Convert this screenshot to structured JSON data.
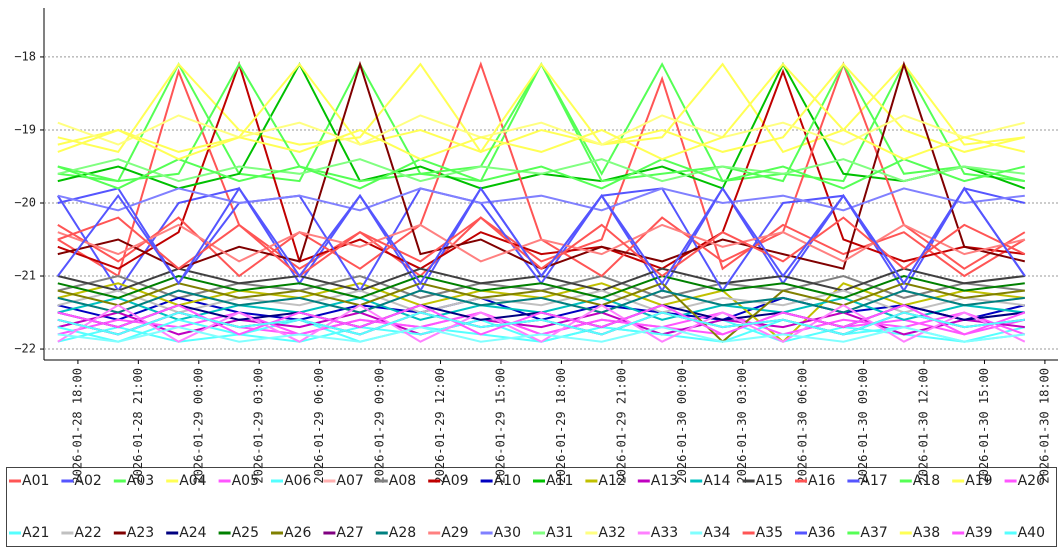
{
  "chart_data": {
    "type": "line",
    "x": [
      "2026-01-28 17:00",
      "2026-01-28 20:00",
      "2026-01-28 23:00",
      "2026-01-29 02:00",
      "2026-01-29 05:00",
      "2026-01-29 08:00",
      "2026-01-29 11:00",
      "2026-01-29 14:00",
      "2026-01-29 17:00",
      "2026-01-29 20:00",
      "2026-01-29 23:00",
      "2026-01-30 02:00",
      "2026-01-30 05:00",
      "2026-01-30 08:00",
      "2026-01-30 11:00",
      "2026-01-30 14:00",
      "2026-01-30 17:00"
    ],
    "xlim": [
      "2026-01-28 16:19",
      "2026-01-30 18:39"
    ],
    "xticks": [
      "2026-01-28 18:00",
      "2026-01-28 21:00",
      "2026-01-29 00:00",
      "2026-01-29 03:00",
      "2026-01-29 06:00",
      "2026-01-29 09:00",
      "2026-01-29 12:00",
      "2026-01-29 15:00",
      "2026-01-29 18:00",
      "2026-01-29 21:00",
      "2026-01-30 00:00",
      "2026-01-30 03:00",
      "2026-01-30 06:00",
      "2026-01-30 09:00",
      "2026-01-30 12:00",
      "2026-01-30 15:00",
      "2026-01-30 18:00"
    ],
    "ylim": [
      -22.15,
      -17.33
    ],
    "yticks": [
      {
        "value": -22,
        "label": "−22"
      },
      {
        "value": -21,
        "label": "−21"
      },
      {
        "value": -20,
        "label": "−20"
      },
      {
        "value": -19,
        "label": "−19"
      },
      {
        "value": -18,
        "label": "−18"
      }
    ],
    "grid": true,
    "legend": "bottom",
    "series": [
      {
        "name": "A01",
        "color": "#ff5555",
        "values": [
          -20.5,
          -21.0,
          -18.2,
          -20.3,
          -20.9,
          -20.4,
          -21.0,
          -20.2,
          -20.8,
          -20.5,
          -18.3,
          -20.9,
          -20.3,
          -20.7,
          -20.4,
          -21.0,
          -20.5
        ]
      },
      {
        "name": "A02",
        "color": "#5555ff",
        "values": [
          -19.9,
          -21.2,
          -20.0,
          -19.8,
          -21.1,
          -19.9,
          -21.2,
          -19.8,
          -21.0,
          -19.9,
          -21.2,
          -19.8,
          -21.1,
          -19.9,
          -21.2,
          -19.8,
          -21.0
        ]
      },
      {
        "name": "A03",
        "color": "#55ff55",
        "values": [
          -19.6,
          -19.7,
          -18.1,
          -19.6,
          -19.7,
          -18.1,
          -19.6,
          -19.7,
          -18.1,
          -19.6,
          -18.1,
          -19.7,
          -19.6,
          -19.7,
          -18.1,
          -19.6,
          -19.7
        ]
      },
      {
        "name": "A04",
        "color": "#ffff55",
        "values": [
          -19.1,
          -19.3,
          -18.1,
          -19.0,
          -19.2,
          -19.1,
          -18.1,
          -19.3,
          -19.0,
          -19.2,
          -19.1,
          -18.1,
          -19.3,
          -19.0,
          -18.1,
          -19.2,
          -19.1
        ]
      },
      {
        "name": "A05",
        "color": "#ff55ff",
        "values": [
          -21.6,
          -21.8,
          -21.5,
          -21.7,
          -21.8,
          -21.6,
          -21.7,
          -21.5,
          -21.8,
          -21.6,
          -21.7,
          -21.8,
          -21.5,
          -21.7,
          -21.6,
          -21.8,
          -21.6
        ]
      },
      {
        "name": "A06",
        "color": "#55ffff",
        "values": [
          -21.9,
          -21.7,
          -21.9,
          -21.8,
          -21.6,
          -21.9,
          -21.7,
          -21.8,
          -21.9,
          -21.7,
          -21.8,
          -21.6,
          -21.9,
          -21.7,
          -21.8,
          -21.9,
          -21.7
        ]
      },
      {
        "name": "A07",
        "color": "#ffafaf",
        "values": [
          -21.3,
          -21.5,
          -21.2,
          -21.4,
          -21.3,
          -21.5,
          -21.2,
          -21.4,
          -21.3,
          -21.5,
          -21.2,
          -21.4,
          -21.3,
          -21.5,
          -21.2,
          -21.4,
          -21.3
        ]
      },
      {
        "name": "A08",
        "color": "#808080",
        "values": [
          -21.2,
          -21.0,
          -21.3,
          -21.1,
          -21.2,
          -21.0,
          -21.3,
          -21.1,
          -21.2,
          -21.0,
          -21.3,
          -21.1,
          -21.2,
          -21.0,
          -21.3,
          -21.1,
          -21.2
        ]
      },
      {
        "name": "A09",
        "color": "#c00000",
        "values": [
          -20.6,
          -20.9,
          -20.4,
          -18.1,
          -20.8,
          -20.5,
          -20.9,
          -20.4,
          -20.7,
          -20.6,
          -20.9,
          -20.4,
          -18.2,
          -20.5,
          -20.8,
          -20.6,
          -20.7
        ]
      },
      {
        "name": "A10",
        "color": "#0000c0",
        "values": [
          -21.4,
          -21.6,
          -21.3,
          -21.5,
          -21.6,
          -21.4,
          -21.5,
          -21.3,
          -21.6,
          -21.4,
          -21.5,
          -21.6,
          -21.3,
          -21.5,
          -21.4,
          -21.6,
          -21.4
        ]
      },
      {
        "name": "A11",
        "color": "#00c000",
        "values": [
          -19.7,
          -19.5,
          -19.8,
          -19.6,
          -18.1,
          -19.7,
          -19.5,
          -19.8,
          -19.6,
          -19.7,
          -19.5,
          -19.8,
          -18.1,
          -19.6,
          -19.7,
          -19.5,
          -19.8
        ]
      },
      {
        "name": "A12",
        "color": "#c0c000",
        "values": [
          -21.3,
          -21.1,
          -21.4,
          -21.2,
          -21.3,
          -21.1,
          -21.4,
          -21.2,
          -21.3,
          -21.1,
          -21.4,
          -21.2,
          -21.9,
          -21.1,
          -21.4,
          -21.2,
          -21.3
        ]
      },
      {
        "name": "A13",
        "color": "#c000c0",
        "values": [
          -21.7,
          -21.5,
          -21.8,
          -21.6,
          -21.7,
          -21.5,
          -21.8,
          -21.6,
          -21.7,
          -21.5,
          -21.8,
          -21.6,
          -21.7,
          -21.5,
          -21.8,
          -21.6,
          -21.7
        ]
      },
      {
        "name": "A14",
        "color": "#00c0c0",
        "values": [
          -21.5,
          -21.3,
          -21.6,
          -21.4,
          -21.5,
          -21.3,
          -21.6,
          -21.4,
          -21.5,
          -21.3,
          -21.6,
          -21.4,
          -21.5,
          -21.3,
          -21.6,
          -21.4,
          -21.5
        ]
      },
      {
        "name": "A15",
        "color": "#404040",
        "values": [
          -21.0,
          -21.2,
          -20.9,
          -21.1,
          -21.0,
          -21.2,
          -20.9,
          -21.1,
          -21.0,
          -21.2,
          -20.9,
          -21.1,
          -21.0,
          -21.2,
          -20.9,
          -21.1,
          -21.0
        ]
      },
      {
        "name": "A16",
        "color": "#ff5555",
        "values": [
          -20.3,
          -20.8,
          -20.2,
          -21.0,
          -20.4,
          -20.9,
          -20.3,
          -18.1,
          -20.5,
          -21.0,
          -20.2,
          -20.8,
          -20.4,
          -18.1,
          -20.3,
          -20.9,
          -20.4
        ]
      },
      {
        "name": "A17",
        "color": "#5555ff",
        "values": [
          -20.0,
          -19.8,
          -21.1,
          -20.0,
          -19.9,
          -21.2,
          -19.8,
          -20.0,
          -21.1,
          -19.9,
          -19.8,
          -21.2,
          -20.0,
          -19.9,
          -21.1,
          -19.8,
          -20.0
        ]
      },
      {
        "name": "A18",
        "color": "#55ff55",
        "values": [
          -19.5,
          -19.7,
          -19.6,
          -18.1,
          -19.5,
          -19.7,
          -19.6,
          -19.5,
          -18.1,
          -19.7,
          -19.6,
          -19.5,
          -19.7,
          -18.1,
          -19.6,
          -19.5,
          -19.7
        ]
      },
      {
        "name": "A19",
        "color": "#ffff55",
        "values": [
          -19.2,
          -19.0,
          -19.3,
          -19.1,
          -18.1,
          -19.2,
          -19.0,
          -19.3,
          -18.1,
          -19.2,
          -19.0,
          -19.3,
          -19.1,
          -18.1,
          -19.0,
          -19.3,
          -19.1
        ]
      },
      {
        "name": "A20",
        "color": "#ff55ff",
        "values": [
          -21.8,
          -21.6,
          -21.7,
          -21.5,
          -21.8,
          -21.6,
          -21.7,
          -21.5,
          -21.8,
          -21.6,
          -21.7,
          -21.5,
          -21.8,
          -21.6,
          -21.7,
          -21.5,
          -21.8
        ]
      },
      {
        "name": "A21",
        "color": "#55ffff",
        "values": [
          -21.7,
          -21.9,
          -21.6,
          -21.8,
          -21.9,
          -21.7,
          -21.8,
          -21.6,
          -21.9,
          -21.7,
          -21.8,
          -21.9,
          -21.6,
          -21.8,
          -21.7,
          -21.9,
          -21.8
        ]
      },
      {
        "name": "A22",
        "color": "#c0c0c0",
        "values": [
          -21.4,
          -21.2,
          -21.5,
          -21.3,
          -21.4,
          -21.2,
          -21.5,
          -21.3,
          -21.4,
          -21.2,
          -21.5,
          -21.3,
          -21.4,
          -21.2,
          -21.5,
          -21.3,
          -21.4
        ]
      },
      {
        "name": "A23",
        "color": "#800000",
        "values": [
          -20.7,
          -20.5,
          -20.9,
          -20.6,
          -20.8,
          -18.1,
          -20.7,
          -20.5,
          -20.9,
          -20.6,
          -20.8,
          -20.5,
          -20.7,
          -20.9,
          -18.1,
          -20.6,
          -20.8
        ]
      },
      {
        "name": "A24",
        "color": "#000080",
        "values": [
          -21.5,
          -21.7,
          -21.4,
          -21.6,
          -21.5,
          -21.7,
          -21.4,
          -21.6,
          -21.5,
          -21.7,
          -21.4,
          -21.6,
          -21.5,
          -21.7,
          -21.4,
          -21.6,
          -21.5
        ]
      },
      {
        "name": "A25",
        "color": "#008000",
        "values": [
          -21.1,
          -21.3,
          -21.0,
          -21.2,
          -21.1,
          -21.3,
          -21.0,
          -21.2,
          -21.1,
          -21.3,
          -21.0,
          -21.2,
          -21.1,
          -21.3,
          -21.0,
          -21.2,
          -21.1
        ]
      },
      {
        "name": "A26",
        "color": "#808000",
        "values": [
          -21.2,
          -21.4,
          -21.1,
          -21.3,
          -21.2,
          -21.4,
          -21.1,
          -21.3,
          -21.2,
          -21.4,
          -21.1,
          -21.9,
          -21.2,
          -21.4,
          -21.1,
          -21.3,
          -21.2
        ]
      },
      {
        "name": "A27",
        "color": "#800080",
        "values": [
          -21.6,
          -21.8,
          -21.5,
          -21.7,
          -21.6,
          -21.8,
          -21.5,
          -21.7,
          -21.6,
          -21.8,
          -21.5,
          -21.7,
          -21.6,
          -21.8,
          -21.5,
          -21.7,
          -21.6
        ]
      },
      {
        "name": "A28",
        "color": "#008080",
        "values": [
          -21.3,
          -21.5,
          -21.2,
          -21.4,
          -21.3,
          -21.5,
          -21.2,
          -21.4,
          -21.3,
          -21.5,
          -21.2,
          -21.4,
          -21.3,
          -21.5,
          -21.2,
          -21.4,
          -21.3
        ]
      },
      {
        "name": "A29",
        "color": "#ff8080",
        "values": [
          -20.4,
          -20.7,
          -20.3,
          -20.8,
          -20.4,
          -20.6,
          -20.3,
          -20.8,
          -20.5,
          -20.7,
          -20.3,
          -20.6,
          -20.4,
          -20.8,
          -20.3,
          -20.7,
          -20.5
        ]
      },
      {
        "name": "A30",
        "color": "#8080ff",
        "values": [
          -19.9,
          -20.1,
          -19.8,
          -20.0,
          -19.9,
          -20.1,
          -19.8,
          -20.0,
          -19.9,
          -20.1,
          -19.8,
          -20.0,
          -19.9,
          -20.1,
          -19.8,
          -20.0,
          -19.9
        ]
      },
      {
        "name": "A31",
        "color": "#80ff80",
        "values": [
          -19.6,
          -19.4,
          -19.7,
          -19.5,
          -19.6,
          -19.4,
          -19.7,
          -19.5,
          -19.6,
          -19.4,
          -19.7,
          -19.5,
          -19.6,
          -19.4,
          -19.7,
          -19.5,
          -19.6
        ]
      },
      {
        "name": "A32",
        "color": "#ffff80",
        "values": [
          -18.9,
          -19.2,
          -18.8,
          -19.1,
          -18.9,
          -19.2,
          -18.8,
          -19.1,
          -18.9,
          -19.2,
          -18.8,
          -19.1,
          -18.9,
          -19.2,
          -18.8,
          -19.1,
          -18.9
        ]
      },
      {
        "name": "A33",
        "color": "#ff80ff",
        "values": [
          -21.9,
          -21.4,
          -21.9,
          -21.5,
          -21.9,
          -21.4,
          -21.9,
          -21.5,
          -21.9,
          -21.4,
          -21.9,
          -21.5,
          -21.9,
          -21.4,
          -21.9,
          -21.5,
          -21.9
        ]
      },
      {
        "name": "A34",
        "color": "#80ffff",
        "values": [
          -21.8,
          -21.9,
          -21.7,
          -21.9,
          -21.8,
          -21.9,
          -21.7,
          -21.9,
          -21.8,
          -21.9,
          -21.7,
          -21.9,
          -21.8,
          -21.9,
          -21.7,
          -21.9,
          -21.8
        ]
      },
      {
        "name": "A35",
        "color": "#ff5555",
        "values": [
          -20.5,
          -20.2,
          -20.9,
          -20.3,
          -21.0,
          -20.4,
          -20.8,
          -20.2,
          -20.9,
          -20.3,
          -21.0,
          -20.4,
          -20.8,
          -20.2,
          -20.9,
          -20.3,
          -20.7
        ]
      },
      {
        "name": "A36",
        "color": "#5555ff",
        "values": [
          -21.0,
          -19.9,
          -21.1,
          -19.8,
          -21.0,
          -19.9,
          -21.1,
          -19.8,
          -21.0,
          -19.9,
          -21.1,
          -19.8,
          -21.0,
          -19.9,
          -21.1,
          -19.8,
          -21.0
        ]
      },
      {
        "name": "A37",
        "color": "#55ff55",
        "values": [
          -19.5,
          -19.8,
          -19.4,
          -19.7,
          -19.5,
          -19.8,
          -19.4,
          -19.7,
          -19.5,
          -19.8,
          -19.4,
          -19.7,
          -19.5,
          -19.8,
          -19.4,
          -19.7,
          -19.5
        ]
      },
      {
        "name": "A38",
        "color": "#ffff55",
        "values": [
          -19.3,
          -19.0,
          -19.4,
          -19.1,
          -19.3,
          -19.0,
          -19.4,
          -19.1,
          -19.3,
          -19.0,
          -19.4,
          -19.1,
          -18.1,
          -19.0,
          -19.4,
          -19.1,
          -19.3
        ]
      },
      {
        "name": "A39",
        "color": "#ff55ff",
        "values": [
          -21.5,
          -21.7,
          -21.4,
          -21.8,
          -21.5,
          -21.7,
          -21.4,
          -21.8,
          -21.5,
          -21.7,
          -21.4,
          -21.8,
          -21.5,
          -21.7,
          -21.4,
          -21.8,
          -21.5
        ]
      },
      {
        "name": "A40",
        "color": "#55ffff",
        "values": [
          -21.6,
          -21.8,
          -21.5,
          -21.7,
          -21.6,
          -21.8,
          -21.5,
          -21.7,
          -21.6,
          -21.8,
          -21.5,
          -21.7,
          -21.6,
          -21.8,
          -21.5,
          -21.7,
          -21.6
        ]
      }
    ]
  }
}
